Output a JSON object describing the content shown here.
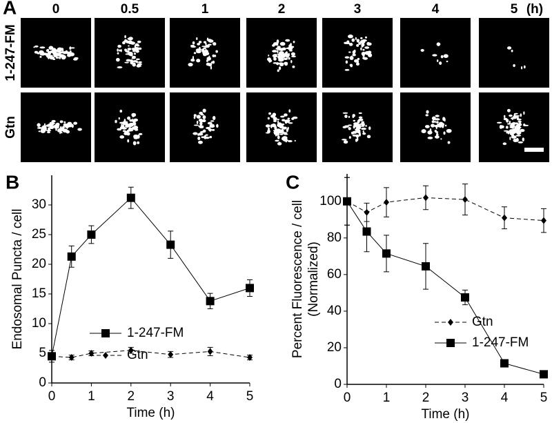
{
  "panel_a": {
    "label": "A",
    "columns": [
      "0",
      "0.5",
      "1",
      "2",
      "3",
      "4",
      "5"
    ],
    "unit": "(h)",
    "rows": [
      "1-247-FM",
      "Gtn"
    ]
  },
  "chart_data": [
    {
      "type": "line",
      "panel": "B",
      "xlabel": "Time (h)",
      "ylabel": "Endosomal Puncta / cell",
      "x": [
        0,
        0.5,
        1,
        2,
        3,
        4,
        5
      ],
      "xlim": [
        0,
        5
      ],
      "xticks": [
        0,
        1,
        2,
        3,
        4,
        5
      ],
      "ylim": [
        0,
        35
      ],
      "yticks": [
        0,
        5,
        10,
        15,
        20,
        25,
        30
      ],
      "legend": "center",
      "series": [
        {
          "name": "1-247-FM",
          "color": "#000000",
          "marker": "square",
          "line_style": "solid",
          "values": [
            4.5,
            21.3,
            25,
            31.2,
            23.3,
            13.8,
            16
          ],
          "errors": [
            1,
            1.8,
            1.5,
            1.8,
            2.3,
            1.3,
            1.4
          ]
        },
        {
          "name": "Gtn",
          "color": "#000000",
          "marker": "diamond",
          "line_style": "dashed",
          "values": [
            4.5,
            4.3,
            5,
            5.5,
            4.8,
            5.3,
            4.3
          ],
          "errors": [
            0.5,
            0.4,
            0.4,
            0.5,
            0.5,
            0.7,
            0.4
          ]
        }
      ]
    },
    {
      "type": "line",
      "panel": "C",
      "xlabel": "Time (h)",
      "ylabel": [
        "Percent Fluorescence / cell",
        "(Normalized)"
      ],
      "x": [
        0,
        0.5,
        1,
        2,
        3,
        4,
        5
      ],
      "xlim": [
        0,
        5
      ],
      "xticks": [
        0,
        1,
        2,
        3,
        4,
        5
      ],
      "ylim": [
        0,
        115
      ],
      "yticks": [
        0,
        20,
        40,
        60,
        80,
        100
      ],
      "legend": "right",
      "series": [
        {
          "name": "Gtn",
          "color": "#000000",
          "marker": "diamond",
          "line_style": "dashed",
          "values": [
            100,
            94,
            99.5,
            102,
            101,
            91,
            89.5
          ],
          "errors": [
            13,
            5,
            8,
            6.5,
            8.5,
            6,
            6.5
          ]
        },
        {
          "name": "1-247-FM",
          "color": "#000000",
          "marker": "square",
          "line_style": "solid",
          "values": [
            100,
            83.5,
            71.5,
            64.5,
            47.5,
            11.5,
            5.5
          ],
          "errors": [
            13,
            11,
            10,
            12.5,
            4,
            1,
            1
          ]
        }
      ]
    }
  ]
}
